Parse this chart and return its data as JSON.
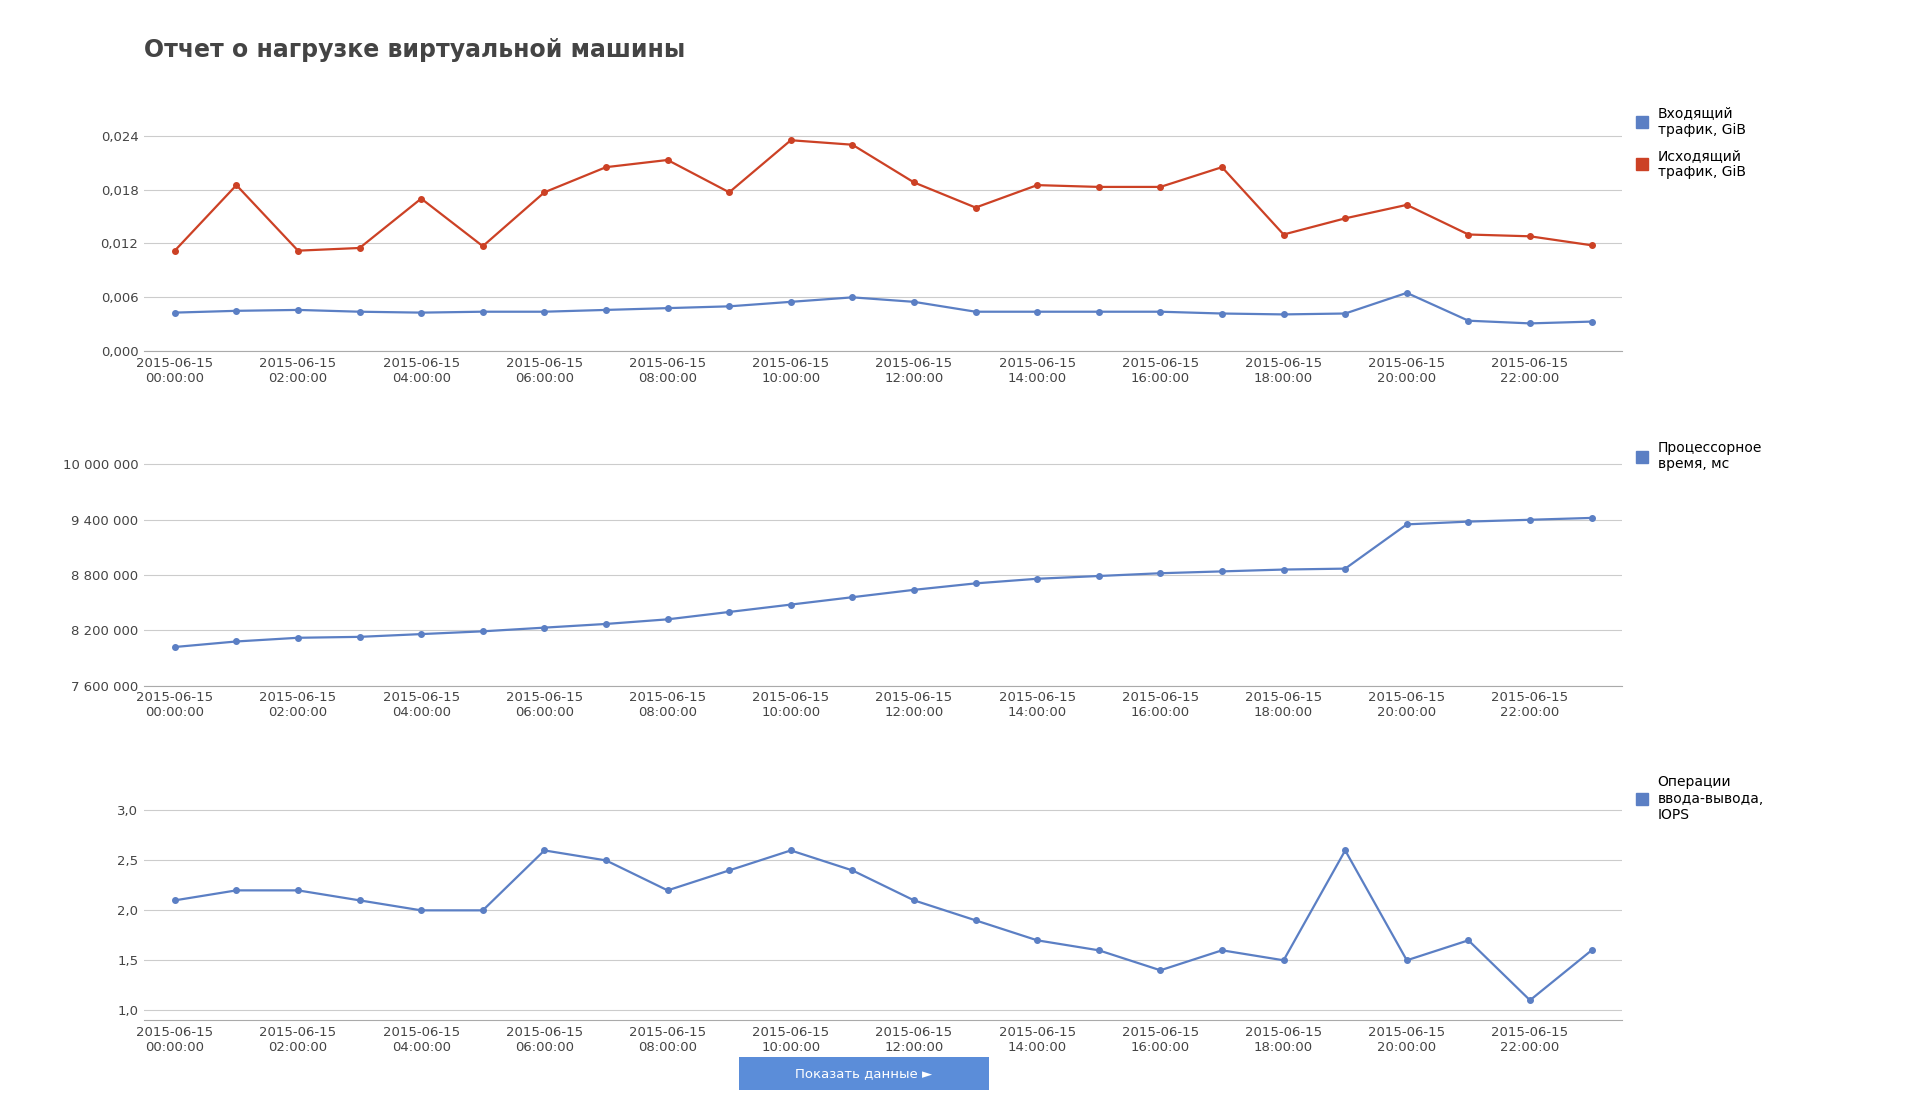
{
  "title": "Отчет о нагрузке виртуальной машины",
  "background_color": "#ffffff",
  "plot_background": "#ffffff",
  "x_labels": [
    "2015-06-15\n00:00:00",
    "2015-06-15\n02:00:00",
    "2015-06-15\n04:00:00",
    "2015-06-15\n06:00:00",
    "2015-06-15\n08:00:00",
    "2015-06-15\n10:00:00",
    "2015-06-15\n12:00:00",
    "2015-06-15\n14:00:00",
    "2015-06-15\n16:00:00",
    "2015-06-15\n18:00:00",
    "2015-06-15\n20:00:00",
    "2015-06-15\n22:00:00"
  ],
  "x_positions": [
    0,
    2,
    4,
    6,
    8,
    10,
    12,
    14,
    16,
    18,
    20,
    22
  ],
  "chart1": {
    "incoming_color": "#5b7fc4",
    "outgoing_color": "#cc4125",
    "incoming_label": "Входящий\nтрафик, GiB",
    "outgoing_label": "Исходящий\nтрафик, GiB",
    "incoming_x": [
      0,
      1,
      2,
      3,
      4,
      5,
      6,
      7,
      8,
      9,
      10,
      11,
      12,
      13,
      14,
      15,
      16,
      17,
      18,
      19,
      20,
      21,
      22,
      23
    ],
    "incoming_y": [
      0.0043,
      0.0045,
      0.0046,
      0.0044,
      0.0043,
      0.0044,
      0.0044,
      0.0046,
      0.0048,
      0.005,
      0.0055,
      0.006,
      0.0055,
      0.0044,
      0.0044,
      0.0044,
      0.0044,
      0.0042,
      0.0041,
      0.0042,
      0.0065,
      0.0034,
      0.0031,
      0.0033
    ],
    "outgoing_x": [
      0,
      1,
      2,
      3,
      4,
      5,
      6,
      7,
      8,
      9,
      10,
      11,
      12,
      13,
      14,
      15,
      16,
      17,
      18,
      19,
      20,
      21,
      22,
      23
    ],
    "outgoing_y": [
      0.0112,
      0.0185,
      0.0112,
      0.0115,
      0.017,
      0.0117,
      0.0177,
      0.0205,
      0.0213,
      0.0177,
      0.0235,
      0.023,
      0.0188,
      0.016,
      0.0185,
      0.0183,
      0.0183,
      0.0205,
      0.013,
      0.0148,
      0.0163,
      0.013,
      0.0128,
      0.0118
    ],
    "ylim": [
      0.0,
      0.0267
    ],
    "yticks": [
      0.0,
      0.006,
      0.012,
      0.018,
      0.024
    ],
    "ytick_labels": [
      "0,000",
      "0,006",
      "0,012",
      "0,018",
      "0,024"
    ]
  },
  "chart2": {
    "color": "#5b7fc4",
    "label": "Процессорное\nвремя, мс",
    "x": [
      0,
      1,
      2,
      3,
      4,
      5,
      6,
      7,
      8,
      9,
      10,
      11,
      12,
      13,
      14,
      15,
      16,
      17,
      18,
      19,
      20,
      21,
      22,
      23
    ],
    "y": [
      8020000,
      8080000,
      8120000,
      8130000,
      8160000,
      8190000,
      8230000,
      8270000,
      8320000,
      8400000,
      8480000,
      8560000,
      8640000,
      8710000,
      8760000,
      8790000,
      8820000,
      8840000,
      8860000,
      8870000,
      9350000,
      9380000,
      9400000,
      9420000
    ],
    "ylim": [
      7600000,
      10200000
    ],
    "yticks": [
      7600000,
      8200000,
      8800000,
      9400000,
      10000000
    ],
    "ytick_labels": [
      "7 600 000",
      "8 200 000",
      "8 800 000",
      "9 400 000",
      "10 000 000"
    ]
  },
  "chart3": {
    "color": "#5b7fc4",
    "label": "Операции\nввода-вывода,\nIOPS",
    "x": [
      0,
      1,
      2,
      3,
      4,
      5,
      6,
      7,
      8,
      9,
      10,
      11,
      12,
      13,
      14,
      15,
      16,
      17,
      18,
      19,
      20,
      21,
      22,
      23
    ],
    "y": [
      2.1,
      2.2,
      2.2,
      2.1,
      2.0,
      2.0,
      2.6,
      2.5,
      2.2,
      2.4,
      2.6,
      2.4,
      2.1,
      1.9,
      1.7,
      1.6,
      1.4,
      1.6,
      1.5,
      2.6,
      1.5,
      1.7,
      1.1,
      1.6
    ],
    "ylim": [
      0.9,
      3.3
    ],
    "yticks": [
      1.0,
      1.5,
      2.0,
      2.5,
      3.0
    ],
    "ytick_labels": [
      "1,0",
      "1,5",
      "2,0",
      "2,5",
      "3,0"
    ]
  },
  "button_text": "Показать данные ►",
  "button_color": "#5b8dd9",
  "button_text_color": "#ffffff",
  "grid_color": "#cccccc",
  "tick_color": "#444444",
  "title_color": "#444444",
  "title_fontsize": 17,
  "axis_fontsize": 9.5,
  "legend_fontsize": 10,
  "marker_size": 4,
  "line_width": 1.6
}
